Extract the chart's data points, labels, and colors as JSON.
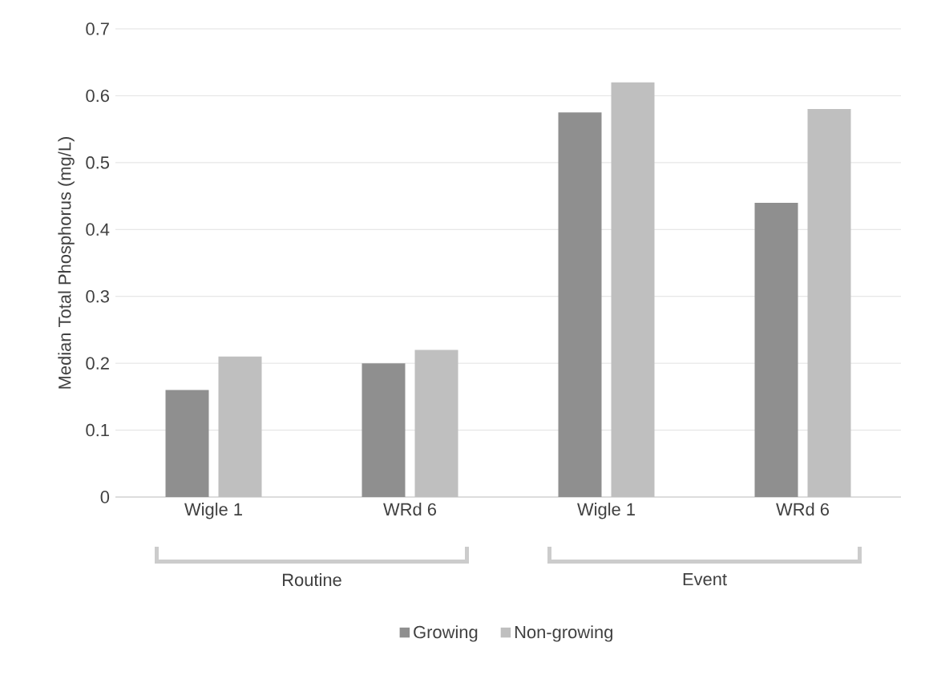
{
  "chart_data": {
    "type": "bar",
    "ylabel": "Median Total Phosphorus (mg/L)",
    "categories": [
      "Wigle 1",
      "WRd 6",
      "Wigle 1",
      "WRd 6"
    ],
    "series": [
      {
        "name": "Growing",
        "color": "#8f8f8f",
        "values": [
          0.16,
          0.2,
          0.575,
          0.44
        ]
      },
      {
        "name": "Non-growing",
        "color": "#bfbfbf",
        "values": [
          0.21,
          0.22,
          0.62,
          0.58
        ]
      }
    ],
    "annotations": [
      "Routine",
      "Event"
    ],
    "ylim": [
      0,
      0.7
    ],
    "yticks": [
      0,
      0.1,
      0.2,
      0.3,
      0.4,
      0.5,
      0.6,
      0.7
    ],
    "grid": "y",
    "legend": "bottom"
  }
}
